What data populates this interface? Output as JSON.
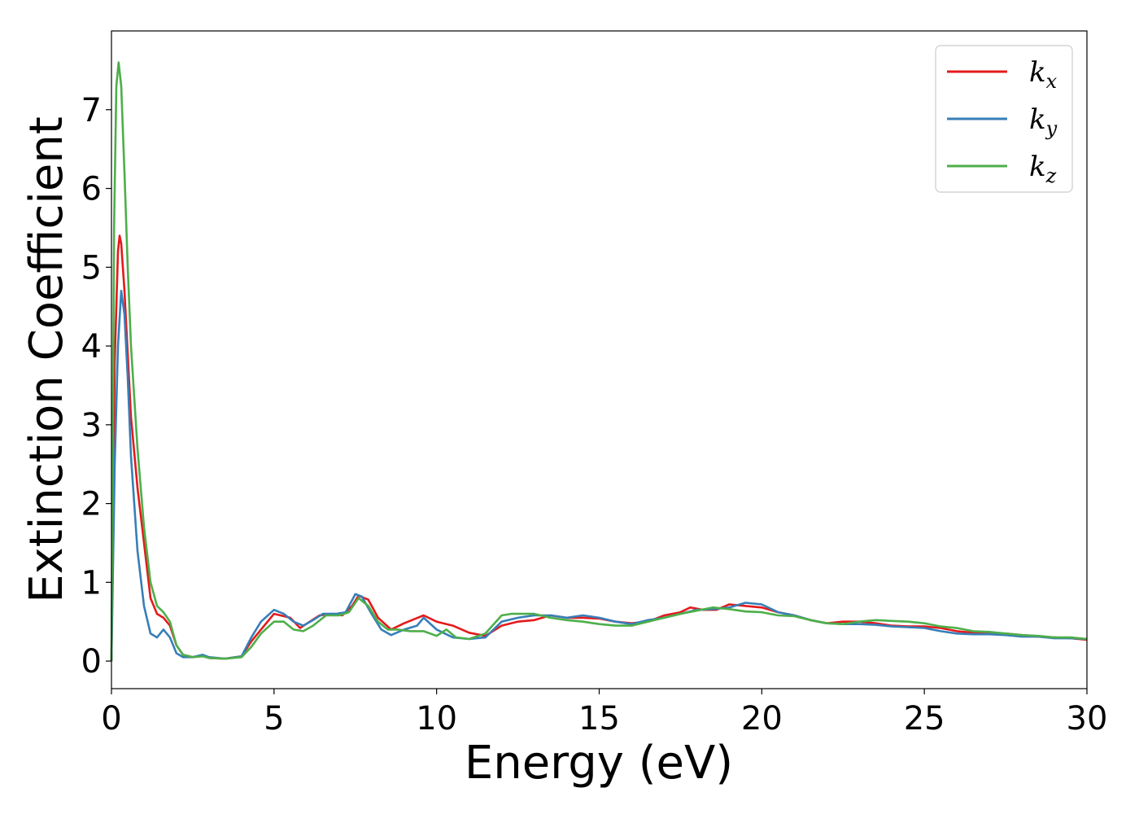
{
  "chart_data": {
    "type": "line",
    "xlabel": "Energy (eV)",
    "ylabel": "Extinction Coefficient",
    "xlim": [
      0,
      30
    ],
    "ylim": [
      -0.35,
      8.0
    ],
    "xticks": [
      0,
      5,
      10,
      15,
      20,
      25,
      30
    ],
    "yticks": [
      0,
      1,
      2,
      3,
      4,
      5,
      6,
      7
    ],
    "grid": false,
    "legend_position": "top-right",
    "series": [
      {
        "name": "k_x",
        "label_base": "k",
        "label_sub": "x",
        "color": "#e41a1c",
        "points": [
          [
            0,
            0
          ],
          [
            0.1,
            3.8
          ],
          [
            0.2,
            5.2
          ],
          [
            0.25,
            5.4
          ],
          [
            0.3,
            5.3
          ],
          [
            0.4,
            4.7
          ],
          [
            0.5,
            3.9
          ],
          [
            0.6,
            3.1
          ],
          [
            0.8,
            2.2
          ],
          [
            1.0,
            1.5
          ],
          [
            1.2,
            0.8
          ],
          [
            1.4,
            0.6
          ],
          [
            1.6,
            0.55
          ],
          [
            1.8,
            0.45
          ],
          [
            2.0,
            0.2
          ],
          [
            2.2,
            0.08
          ],
          [
            2.5,
            0.05
          ],
          [
            2.8,
            0.07
          ],
          [
            3.0,
            0.04
          ],
          [
            3.5,
            0.03
          ],
          [
            4.0,
            0.06
          ],
          [
            4.3,
            0.25
          ],
          [
            4.6,
            0.4
          ],
          [
            5.0,
            0.6
          ],
          [
            5.2,
            0.58
          ],
          [
            5.5,
            0.55
          ],
          [
            5.8,
            0.42
          ],
          [
            6.1,
            0.5
          ],
          [
            6.4,
            0.58
          ],
          [
            6.8,
            0.6
          ],
          [
            7.1,
            0.58
          ],
          [
            7.4,
            0.7
          ],
          [
            7.6,
            0.83
          ],
          [
            7.9,
            0.78
          ],
          [
            8.2,
            0.55
          ],
          [
            8.6,
            0.4
          ],
          [
            9.0,
            0.48
          ],
          [
            9.6,
            0.58
          ],
          [
            10.0,
            0.5
          ],
          [
            10.5,
            0.45
          ],
          [
            11.0,
            0.36
          ],
          [
            11.5,
            0.32
          ],
          [
            12.0,
            0.45
          ],
          [
            12.5,
            0.5
          ],
          [
            13.0,
            0.52
          ],
          [
            13.5,
            0.58
          ],
          [
            14.0,
            0.55
          ],
          [
            14.5,
            0.55
          ],
          [
            15.0,
            0.54
          ],
          [
            15.5,
            0.5
          ],
          [
            16.0,
            0.48
          ],
          [
            16.5,
            0.5
          ],
          [
            17.0,
            0.58
          ],
          [
            17.5,
            0.62
          ],
          [
            17.8,
            0.68
          ],
          [
            18.2,
            0.65
          ],
          [
            18.6,
            0.65
          ],
          [
            19.0,
            0.72
          ],
          [
            19.5,
            0.7
          ],
          [
            20.0,
            0.68
          ],
          [
            20.5,
            0.62
          ],
          [
            21.0,
            0.58
          ],
          [
            21.5,
            0.52
          ],
          [
            22.0,
            0.48
          ],
          [
            22.5,
            0.5
          ],
          [
            23.0,
            0.5
          ],
          [
            23.5,
            0.48
          ],
          [
            24.0,
            0.45
          ],
          [
            24.5,
            0.44
          ],
          [
            25.0,
            0.44
          ],
          [
            25.5,
            0.42
          ],
          [
            26.0,
            0.38
          ],
          [
            26.5,
            0.36
          ],
          [
            27.0,
            0.35
          ],
          [
            27.5,
            0.35
          ],
          [
            28.0,
            0.33
          ],
          [
            28.5,
            0.31
          ],
          [
            29.0,
            0.3
          ],
          [
            29.5,
            0.29
          ],
          [
            30.0,
            0.27
          ]
        ]
      },
      {
        "name": "k_y",
        "label_base": "k",
        "label_sub": "y",
        "color": "#377eb8",
        "points": [
          [
            0,
            0
          ],
          [
            0.1,
            2.5
          ],
          [
            0.2,
            4.0
          ],
          [
            0.3,
            4.7
          ],
          [
            0.4,
            4.4
          ],
          [
            0.5,
            3.6
          ],
          [
            0.6,
            2.6
          ],
          [
            0.8,
            1.4
          ],
          [
            1.0,
            0.7
          ],
          [
            1.2,
            0.35
          ],
          [
            1.4,
            0.3
          ],
          [
            1.6,
            0.4
          ],
          [
            1.8,
            0.3
          ],
          [
            2.0,
            0.1
          ],
          [
            2.2,
            0.05
          ],
          [
            2.5,
            0.05
          ],
          [
            2.8,
            0.08
          ],
          [
            3.0,
            0.05
          ],
          [
            3.5,
            0.03
          ],
          [
            4.0,
            0.06
          ],
          [
            4.3,
            0.3
          ],
          [
            4.6,
            0.5
          ],
          [
            5.0,
            0.65
          ],
          [
            5.3,
            0.6
          ],
          [
            5.6,
            0.5
          ],
          [
            5.9,
            0.45
          ],
          [
            6.2,
            0.52
          ],
          [
            6.5,
            0.6
          ],
          [
            6.9,
            0.6
          ],
          [
            7.2,
            0.62
          ],
          [
            7.5,
            0.85
          ],
          [
            7.7,
            0.82
          ],
          [
            8.0,
            0.6
          ],
          [
            8.3,
            0.4
          ],
          [
            8.6,
            0.33
          ],
          [
            9.0,
            0.4
          ],
          [
            9.4,
            0.45
          ],
          [
            9.6,
            0.55
          ],
          [
            10.0,
            0.4
          ],
          [
            10.5,
            0.3
          ],
          [
            11.0,
            0.28
          ],
          [
            11.5,
            0.3
          ],
          [
            12.0,
            0.5
          ],
          [
            12.5,
            0.55
          ],
          [
            13.0,
            0.58
          ],
          [
            13.5,
            0.58
          ],
          [
            14.0,
            0.55
          ],
          [
            14.5,
            0.58
          ],
          [
            15.0,
            0.55
          ],
          [
            15.5,
            0.5
          ],
          [
            16.0,
            0.47
          ],
          [
            16.5,
            0.52
          ],
          [
            17.0,
            0.55
          ],
          [
            17.5,
            0.6
          ],
          [
            18.0,
            0.65
          ],
          [
            18.5,
            0.66
          ],
          [
            19.0,
            0.68
          ],
          [
            19.5,
            0.74
          ],
          [
            20.0,
            0.72
          ],
          [
            20.5,
            0.62
          ],
          [
            21.0,
            0.58
          ],
          [
            21.5,
            0.52
          ],
          [
            22.0,
            0.48
          ],
          [
            22.5,
            0.47
          ],
          [
            23.0,
            0.47
          ],
          [
            23.5,
            0.46
          ],
          [
            24.0,
            0.44
          ],
          [
            24.5,
            0.43
          ],
          [
            25.0,
            0.42
          ],
          [
            25.5,
            0.38
          ],
          [
            26.0,
            0.35
          ],
          [
            26.5,
            0.34
          ],
          [
            27.0,
            0.34
          ],
          [
            27.5,
            0.33
          ],
          [
            28.0,
            0.31
          ],
          [
            28.5,
            0.31
          ],
          [
            29.0,
            0.29
          ],
          [
            29.5,
            0.29
          ],
          [
            30.0,
            0.28
          ]
        ]
      },
      {
        "name": "k_z",
        "label_base": "k",
        "label_sub": "z",
        "color": "#4daf4a",
        "points": [
          [
            0,
            0
          ],
          [
            0.08,
            5.5
          ],
          [
            0.15,
            7.3
          ],
          [
            0.22,
            7.6
          ],
          [
            0.3,
            7.3
          ],
          [
            0.4,
            6.2
          ],
          [
            0.5,
            5.0
          ],
          [
            0.6,
            4.0
          ],
          [
            0.8,
            2.7
          ],
          [
            1.0,
            1.7
          ],
          [
            1.2,
            1.0
          ],
          [
            1.4,
            0.7
          ],
          [
            1.6,
            0.62
          ],
          [
            1.8,
            0.5
          ],
          [
            2.0,
            0.2
          ],
          [
            2.2,
            0.08
          ],
          [
            2.5,
            0.05
          ],
          [
            2.8,
            0.06
          ],
          [
            3.0,
            0.04
          ],
          [
            3.5,
            0.03
          ],
          [
            4.0,
            0.05
          ],
          [
            4.3,
            0.18
          ],
          [
            4.6,
            0.35
          ],
          [
            5.0,
            0.5
          ],
          [
            5.3,
            0.5
          ],
          [
            5.6,
            0.4
          ],
          [
            5.9,
            0.38
          ],
          [
            6.2,
            0.45
          ],
          [
            6.6,
            0.58
          ],
          [
            7.0,
            0.58
          ],
          [
            7.3,
            0.62
          ],
          [
            7.6,
            0.8
          ],
          [
            7.9,
            0.7
          ],
          [
            8.2,
            0.5
          ],
          [
            8.5,
            0.4
          ],
          [
            8.8,
            0.4
          ],
          [
            9.2,
            0.38
          ],
          [
            9.6,
            0.38
          ],
          [
            10.0,
            0.32
          ],
          [
            10.3,
            0.4
          ],
          [
            10.6,
            0.3
          ],
          [
            11.0,
            0.28
          ],
          [
            11.5,
            0.35
          ],
          [
            12.0,
            0.58
          ],
          [
            12.3,
            0.6
          ],
          [
            12.7,
            0.6
          ],
          [
            13.0,
            0.6
          ],
          [
            13.5,
            0.55
          ],
          [
            14.0,
            0.52
          ],
          [
            14.5,
            0.5
          ],
          [
            15.0,
            0.47
          ],
          [
            15.5,
            0.45
          ],
          [
            16.0,
            0.45
          ],
          [
            16.5,
            0.5
          ],
          [
            17.0,
            0.55
          ],
          [
            17.5,
            0.6
          ],
          [
            18.0,
            0.64
          ],
          [
            18.5,
            0.68
          ],
          [
            19.0,
            0.66
          ],
          [
            19.5,
            0.63
          ],
          [
            20.0,
            0.62
          ],
          [
            20.5,
            0.58
          ],
          [
            21.0,
            0.57
          ],
          [
            21.5,
            0.52
          ],
          [
            22.0,
            0.48
          ],
          [
            22.5,
            0.47
          ],
          [
            23.0,
            0.5
          ],
          [
            23.5,
            0.52
          ],
          [
            24.0,
            0.51
          ],
          [
            24.5,
            0.5
          ],
          [
            25.0,
            0.48
          ],
          [
            25.5,
            0.44
          ],
          [
            26.0,
            0.42
          ],
          [
            26.5,
            0.38
          ],
          [
            27.0,
            0.37
          ],
          [
            27.5,
            0.35
          ],
          [
            28.0,
            0.33
          ],
          [
            28.5,
            0.32
          ],
          [
            29.0,
            0.3
          ],
          [
            29.5,
            0.3
          ],
          [
            30.0,
            0.28
          ]
        ]
      }
    ]
  }
}
